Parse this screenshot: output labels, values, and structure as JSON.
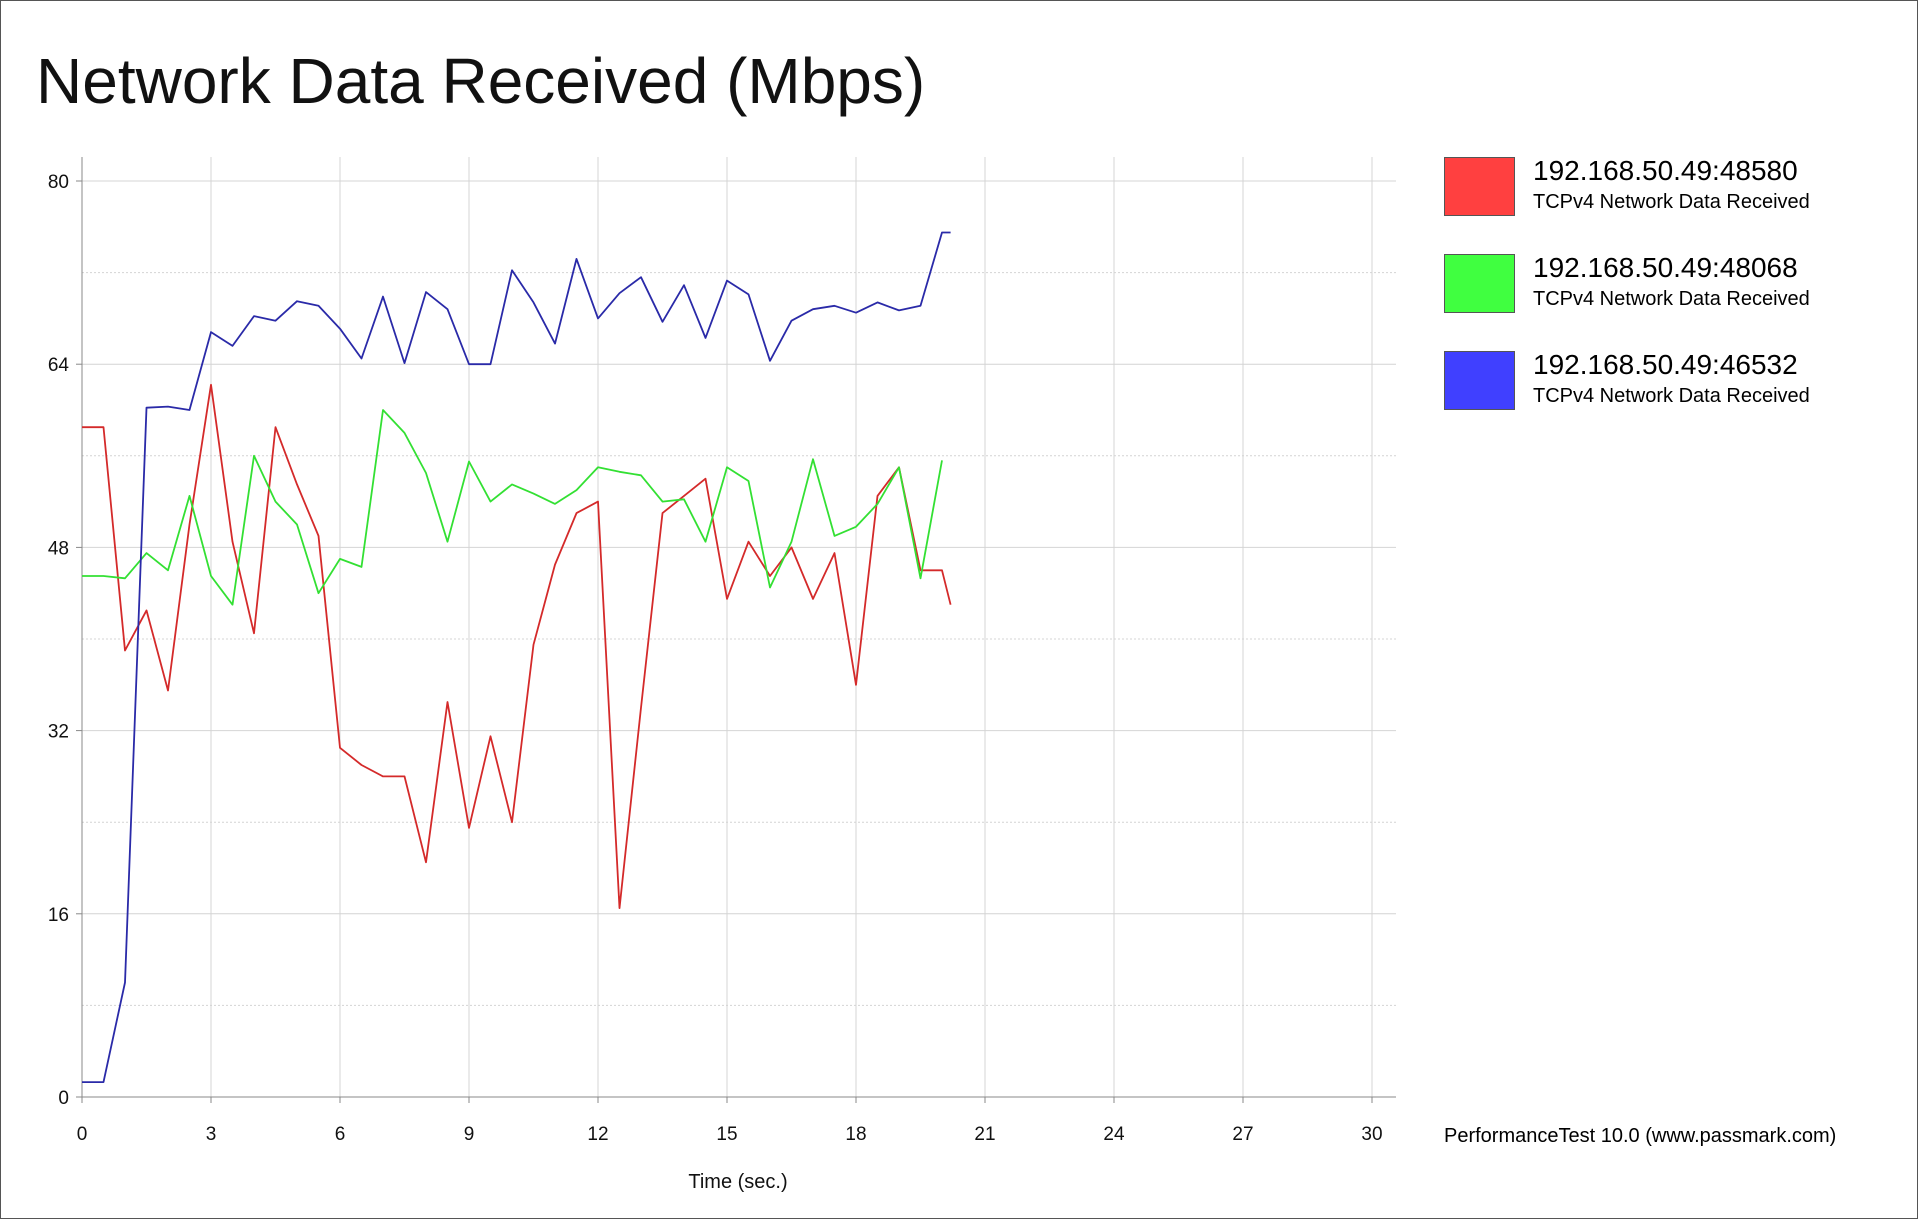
{
  "chart_data": {
    "type": "line",
    "title": "Network Data Received (Mbps)",
    "xlabel": "Time (sec.)",
    "ylabel": "",
    "xlim": [
      0,
      30
    ],
    "ylim": [
      0,
      80
    ],
    "x_ticks": [
      "0",
      "3",
      "6",
      "9",
      "12",
      "15",
      "18",
      "21",
      "24",
      "27",
      "30"
    ],
    "y_ticks": [
      "0",
      "16",
      "32",
      "48",
      "64",
      "80"
    ],
    "grid": true,
    "legend_position": "right",
    "series": [
      {
        "name": "192.168.50.49:48580",
        "description": "TCPv4 Network Data Received",
        "swatch_color": "#ff4040",
        "line_color": "#d42a2a",
        "x": [
          0,
          0.5,
          1.0,
          1.5,
          2.0,
          2.5,
          3.0,
          3.5,
          4.0,
          4.5,
          5.0,
          5.5,
          6.0,
          6.5,
          7.0,
          7.5,
          8.0,
          8.5,
          9.0,
          9.5,
          10.0,
          10.5,
          11.0,
          11.5,
          12.0,
          12.5,
          13.0,
          13.5,
          14.0,
          14.5,
          15.0,
          15.5,
          16.0,
          16.5,
          17.0,
          17.5,
          18.0,
          18.5,
          19.0,
          19.5,
          20.0,
          20.2
        ],
        "y": [
          58.5,
          58.5,
          39,
          42.5,
          35.5,
          50,
          62.2,
          48.5,
          40.5,
          58.5,
          53.5,
          49,
          30.5,
          29,
          28,
          28,
          20.5,
          34.5,
          23.5,
          31.5,
          24,
          39.5,
          46.5,
          51,
          52,
          16.5,
          34,
          51,
          52.5,
          54,
          43.5,
          48.5,
          45.5,
          48,
          43.5,
          47.5,
          36,
          52.5,
          55,
          46,
          46,
          43
        ]
      },
      {
        "name": "192.168.50.49:48068",
        "description": "TCPv4 Network Data Received",
        "swatch_color": "#40ff40",
        "line_color": "#33e033",
        "x": [
          0,
          0.5,
          1.0,
          1.5,
          2.0,
          2.5,
          3.0,
          3.5,
          4.0,
          4.5,
          5.0,
          5.5,
          6.0,
          6.5,
          7.0,
          7.5,
          8.0,
          8.5,
          9.0,
          9.5,
          10.0,
          10.5,
          11.0,
          11.5,
          12.0,
          12.5,
          13.0,
          13.5,
          14.0,
          14.5,
          15.0,
          15.5,
          16.0,
          16.5,
          17.0,
          17.5,
          18.0,
          18.5,
          19.0,
          19.5,
          20.0
        ],
        "y": [
          45.5,
          45.5,
          45.3,
          47.5,
          46,
          52.5,
          45.5,
          43,
          56,
          52,
          50,
          44,
          47,
          46.3,
          60,
          58,
          54.5,
          48.5,
          55.5,
          52,
          53.5,
          52.7,
          51.8,
          53,
          55,
          54.6,
          54.3,
          52,
          52.2,
          48.5,
          55,
          53.8,
          44.5,
          48.5,
          55.7,
          49,
          49.8,
          51.8,
          55,
          45.3,
          55.6
        ]
      },
      {
        "name": "192.168.50.49:46532",
        "description": "TCPv4 Network Data Received",
        "swatch_color": "#4040ff",
        "line_color": "#2a2aa8",
        "x": [
          0,
          0.5,
          1.0,
          1.5,
          2.0,
          2.5,
          3.0,
          3.5,
          4.0,
          4.5,
          5.0,
          5.5,
          6.0,
          6.5,
          7.0,
          7.5,
          8.0,
          8.5,
          9.0,
          9.5,
          10.0,
          10.5,
          11.0,
          11.5,
          12.0,
          12.5,
          13.0,
          13.5,
          14.0,
          14.5,
          15.0,
          15.5,
          16.0,
          16.5,
          17.0,
          17.5,
          18.0,
          18.5,
          19.0,
          19.5,
          20.0,
          20.2
        ],
        "y": [
          1.3,
          1.3,
          10,
          60.2,
          60.3,
          60,
          66.8,
          65.6,
          68.2,
          67.8,
          69.5,
          69.1,
          67.1,
          64.5,
          69.9,
          64.1,
          70.3,
          68.8,
          64,
          64,
          72.2,
          69.4,
          65.8,
          73.2,
          68,
          70.2,
          71.6,
          67.7,
          70.9,
          66.3,
          71.3,
          70.1,
          64.3,
          67.8,
          68.8,
          69.1,
          68.5,
          69.4,
          68.7,
          69.1,
          75.5,
          75.5
        ]
      }
    ]
  },
  "footer_text": "PerformanceTest 10.0 (www.passmark.com)"
}
